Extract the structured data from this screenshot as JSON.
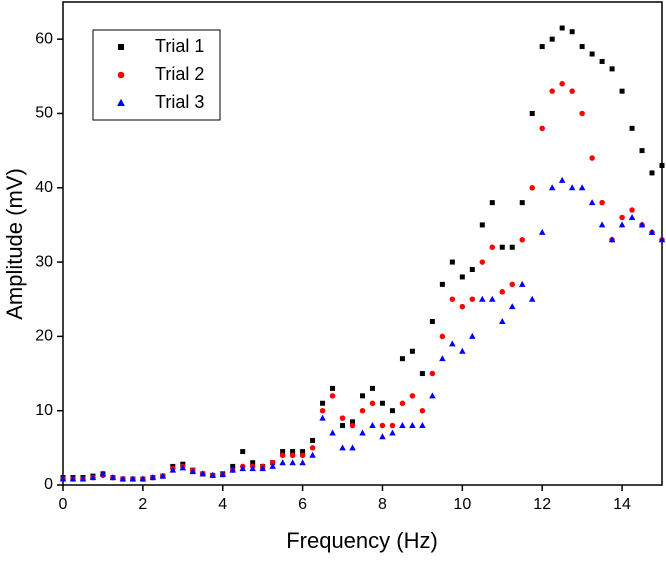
{
  "chart_data": {
    "type": "scatter",
    "x_label": "Frequency (Hz)",
    "y_label": "Amplitude (mV)",
    "x": [
      0,
      0.25,
      0.5,
      0.75,
      1,
      1.25,
      1.5,
      1.75,
      2,
      2.25,
      2.5,
      2.75,
      3,
      3.25,
      3.5,
      3.75,
      4,
      4.25,
      4.5,
      4.75,
      5,
      5.25,
      5.5,
      5.75,
      6,
      6.25,
      6.5,
      6.75,
      7,
      7.25,
      7.5,
      7.75,
      8,
      8.25,
      8.5,
      8.75,
      9,
      9.25,
      9.5,
      9.75,
      10,
      10.25,
      10.5,
      10.75,
      11,
      11.25,
      11.5,
      11.75,
      12,
      12.25,
      12.5,
      12.75,
      13,
      13.25,
      13.5,
      13.75,
      14,
      14.25,
      14.5,
      14.75,
      15
    ],
    "series": [
      {
        "name": "Trial 1",
        "color": "#000000",
        "marker": "square",
        "values": [
          1,
          1,
          1,
          1.2,
          1.5,
          1,
          0.8,
          0.8,
          0.8,
          1,
          1.2,
          2.5,
          2.8,
          2,
          1.5,
          1.3,
          1.5,
          2.5,
          4.5,
          3,
          2.5,
          3,
          4.5,
          4.5,
          4.5,
          6,
          11,
          13,
          8,
          8.5,
          12,
          13,
          11,
          10,
          17,
          18,
          15,
          22,
          27,
          30,
          28,
          29,
          35,
          38,
          32,
          32,
          38,
          50,
          59,
          60,
          61.5,
          61,
          59,
          58,
          57,
          56,
          53,
          48,
          45,
          42,
          43
        ]
      },
      {
        "name": "Trial 2",
        "color": "#ff0000",
        "marker": "circle",
        "values": [
          0.8,
          0.8,
          0.8,
          1,
          1.3,
          1,
          0.8,
          0.8,
          0.8,
          1,
          1.2,
          2.2,
          2.5,
          2,
          1.5,
          1.3,
          1.4,
          2,
          2.5,
          2.5,
          2.5,
          3,
          4,
          4,
          4,
          5,
          10,
          12,
          9,
          8,
          10,
          11,
          8,
          8,
          11,
          12,
          10,
          15,
          20,
          25,
          24,
          25,
          30,
          32,
          26,
          27,
          33,
          40,
          48,
          53,
          54,
          53,
          50,
          44,
          38,
          33,
          36,
          37,
          35,
          34,
          33
        ]
      },
      {
        "name": "Trial 3",
        "color": "#0000ff",
        "marker": "triangle",
        "values": [
          0.8,
          0.8,
          0.8,
          1,
          1.5,
          1,
          0.8,
          0.8,
          0.8,
          1,
          1.2,
          2,
          2.3,
          1.8,
          1.5,
          1.3,
          1.4,
          2,
          2.2,
          2.2,
          2.2,
          2.5,
          3,
          3,
          3,
          4,
          9,
          7,
          5,
          5,
          7,
          8,
          6.5,
          7,
          8,
          8,
          8,
          12,
          17,
          19,
          18,
          20,
          25,
          25,
          22,
          24,
          27,
          25,
          34,
          40,
          41,
          40,
          40,
          38,
          35,
          33,
          35,
          36,
          35,
          34,
          33
        ]
      }
    ],
    "xlim": [
      0,
      15
    ],
    "xticks": [
      0,
      2,
      4,
      6,
      8,
      10,
      12,
      14
    ],
    "ylim": [
      0,
      65
    ],
    "yticks": [
      0,
      10,
      20,
      30,
      40,
      50,
      60
    ],
    "legend": "upper-left"
  }
}
